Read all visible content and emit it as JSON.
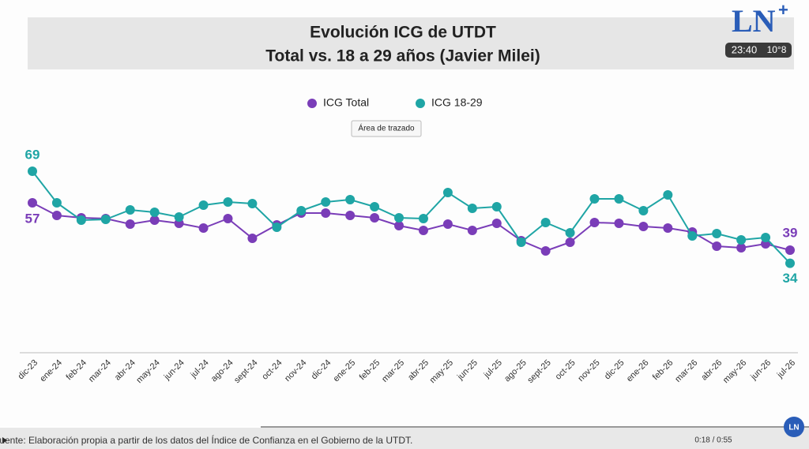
{
  "chart_data": {
    "type": "line",
    "title": "Evolución ICG de UTDT",
    "subtitle": "Total vs. 18 a 29 años (Javier Milei)",
    "categories": [
      "dic-23",
      "ene-24",
      "feb-24",
      "mar-24",
      "abr-24",
      "may-24",
      "jun-24",
      "jul-24",
      "ago-24",
      "sept-24",
      "oct-24",
      "nov-24",
      "dic-24",
      "ene-25",
      "feb-25",
      "mar-25",
      "abr-25",
      "may-25",
      "jun-25",
      "jul-25",
      "ago-25",
      "sept-25",
      "oct-25",
      "nov-25",
      "dic-25",
      "ene-26",
      "feb-26",
      "mar-26",
      "abr-26",
      "may-26",
      "jun-26",
      "jul-26"
    ],
    "series": [
      {
        "name": "ICG Total",
        "color": "#7a3db8",
        "values": [
          57,
          52.2,
          51.3,
          51,
          48.9,
          50.4,
          49.2,
          47.4,
          51,
          43.5,
          48.6,
          53.1,
          53.1,
          52.2,
          51.3,
          48.3,
          46.5,
          48.9,
          46.5,
          49.2,
          42.6,
          38.7,
          42,
          49.5,
          49.2,
          48,
          47.4,
          45.9,
          40.5,
          39.9,
          41.4,
          39
        ]
      },
      {
        "name": "ICG 18-29",
        "color": "#1fa5a5",
        "values": [
          69,
          57,
          50.4,
          50.7,
          54.3,
          53.4,
          51.6,
          56.1,
          57.3,
          56.7,
          47.7,
          54,
          57.3,
          58.2,
          55.5,
          51.3,
          51,
          60.9,
          54.9,
          55.5,
          42,
          49.5,
          45.6,
          58.5,
          58.5,
          54,
          60,
          44.4,
          45.3,
          42.9,
          43.8,
          34
        ]
      }
    ],
    "ylim": [
      0,
      75
    ],
    "tooltip": "Área de trazado",
    "source": "Fuente: Elaboración propia a partir de los datos del Índice de Confianza en el Gobierno de la UTDT."
  },
  "overlay": {
    "logo": "LN",
    "logo_plus": "+",
    "clock": "23:40",
    "temperature": "10°8",
    "video_time": "0:18 / 0:55",
    "badge": "LN"
  }
}
